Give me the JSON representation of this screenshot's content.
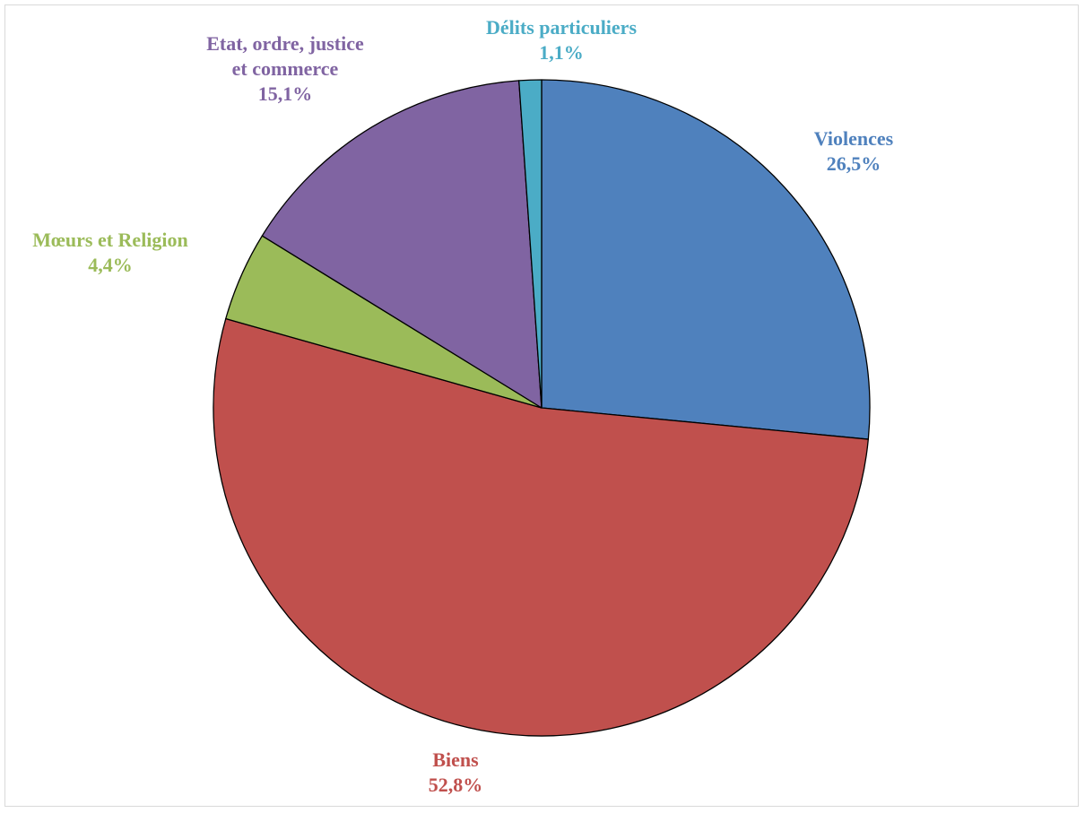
{
  "chart_data": {
    "type": "pie",
    "start_angle_deg": 0,
    "direction": "clockwise",
    "slices": [
      {
        "name": "Violences",
        "label_lines": [
          "Violences"
        ],
        "value": 26.5,
        "value_label": "26,5%",
        "color": "#4F81BD"
      },
      {
        "name": "Biens",
        "label_lines": [
          "Biens"
        ],
        "value": 52.8,
        "value_label": "52,8%",
        "color": "#C0504D"
      },
      {
        "name": "Mœurs et Religion",
        "label_lines": [
          "Mœurs et Religion"
        ],
        "value": 4.4,
        "value_label": "4,4%",
        "color": "#9BBB59"
      },
      {
        "name": "Etat, ordre, justice et commerce",
        "label_lines": [
          "Etat, ordre, justice",
          "et commerce"
        ],
        "value": 15.1,
        "value_label": "15,1%",
        "color": "#8064A2"
      },
      {
        "name": "Délits particuliers",
        "label_lines": [
          "Délits particuliers"
        ],
        "value": 1.1,
        "value_label": "1,1%",
        "color": "#4BACC6"
      }
    ]
  }
}
